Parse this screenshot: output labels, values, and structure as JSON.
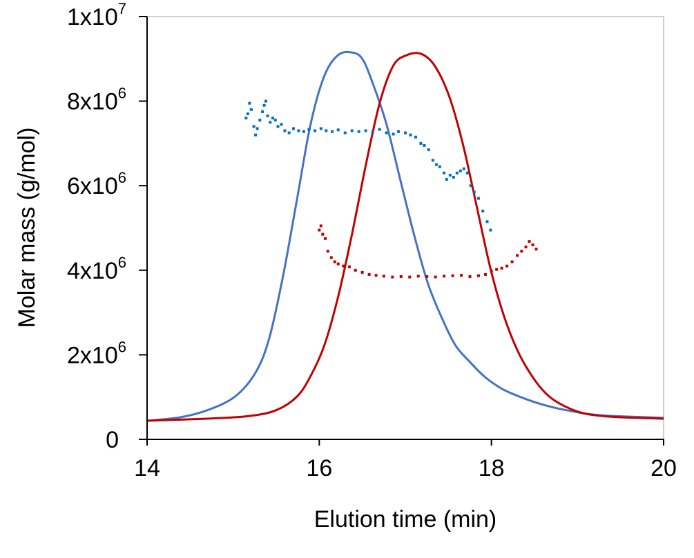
{
  "chart_data": {
    "type": "line",
    "title": "",
    "xlabel": "Elution time (min)",
    "ylabel": "Molar mass (g/mol)",
    "xlim": [
      14,
      20
    ],
    "ylim": [
      0,
      10000000
    ],
    "x_ticks": [
      {
        "value": 14,
        "label": "14"
      },
      {
        "value": 16,
        "label": "16"
      },
      {
        "value": 18,
        "label": "18"
      },
      {
        "value": 20,
        "label": "20"
      }
    ],
    "y_ticks": [
      {
        "value": 0,
        "mant": "0",
        "exp": ""
      },
      {
        "value": 2000000,
        "mant": "2x10",
        "exp": "6"
      },
      {
        "value": 4000000,
        "mant": "4x10",
        "exp": "6"
      },
      {
        "value": 6000000,
        "mant": "6x10",
        "exp": "6"
      },
      {
        "value": 8000000,
        "mant": "8x10",
        "exp": "6"
      },
      {
        "value": 10000000,
        "mant": "1x10",
        "exp": "7"
      }
    ],
    "grid": false,
    "legend": "none",
    "series": [
      {
        "kind": "line",
        "color": "#4472C4",
        "points": [
          [
            14,
            0.44
          ],
          [
            14.38,
            0.52
          ],
          [
            14.7,
            0.69
          ],
          [
            15.02,
            1.01
          ],
          [
            15.26,
            1.58
          ],
          [
            15.42,
            2.4
          ],
          [
            15.58,
            3.87
          ],
          [
            15.74,
            5.66
          ],
          [
            15.9,
            7.46
          ],
          [
            16.06,
            8.6
          ],
          [
            16.22,
            9.09
          ],
          [
            16.38,
            9.15
          ],
          [
            16.5,
            9.0
          ],
          [
            16.62,
            8.43
          ],
          [
            16.78,
            7.46
          ],
          [
            16.94,
            6.15
          ],
          [
            17.1,
            4.85
          ],
          [
            17.26,
            3.7
          ],
          [
            17.42,
            2.89
          ],
          [
            17.58,
            2.23
          ],
          [
            17.75,
            1.83
          ],
          [
            17.91,
            1.5
          ],
          [
            18.07,
            1.26
          ],
          [
            18.23,
            1.09
          ],
          [
            18.55,
            0.85
          ],
          [
            18.87,
            0.69
          ],
          [
            19.27,
            0.57
          ],
          [
            20,
            0.51
          ]
        ]
      },
      {
        "kind": "line",
        "color": "#C00000",
        "points": [
          [
            14,
            0.44
          ],
          [
            14.7,
            0.49
          ],
          [
            15.18,
            0.55
          ],
          [
            15.5,
            0.69
          ],
          [
            15.74,
            1.01
          ],
          [
            15.9,
            1.5
          ],
          [
            16.06,
            2.23
          ],
          [
            16.22,
            3.38
          ],
          [
            16.38,
            4.85
          ],
          [
            16.54,
            6.48
          ],
          [
            16.7,
            7.94
          ],
          [
            16.86,
            8.84
          ],
          [
            17.02,
            9.09
          ],
          [
            17.18,
            9.12
          ],
          [
            17.34,
            8.84
          ],
          [
            17.51,
            8.11
          ],
          [
            17.67,
            6.97
          ],
          [
            17.83,
            5.5
          ],
          [
            17.99,
            4.03
          ],
          [
            18.15,
            2.89
          ],
          [
            18.31,
            2.07
          ],
          [
            18.47,
            1.5
          ],
          [
            18.63,
            1.09
          ],
          [
            18.79,
            0.85
          ],
          [
            19.03,
            0.64
          ],
          [
            19.35,
            0.54
          ],
          [
            20,
            0.49
          ]
        ]
      },
      {
        "kind": "scatter",
        "color": "#0070C0",
        "points": [
          [
            15.15,
            7.6
          ],
          [
            15.17,
            7.7
          ],
          [
            15.19,
            7.95
          ],
          [
            15.21,
            7.8
          ],
          [
            15.24,
            7.4
          ],
          [
            15.26,
            7.2
          ],
          [
            15.28,
            7.35
          ],
          [
            15.31,
            7.55
          ],
          [
            15.34,
            7.75
          ],
          [
            15.36,
            7.9
          ],
          [
            15.38,
            8.0
          ],
          [
            15.4,
            7.65
          ],
          [
            15.43,
            7.5
          ],
          [
            15.46,
            7.6
          ],
          [
            15.49,
            7.55
          ],
          [
            15.52,
            7.4
          ],
          [
            15.56,
            7.45
          ],
          [
            15.6,
            7.3
          ],
          [
            15.65,
            7.25
          ],
          [
            15.7,
            7.35
          ],
          [
            15.76,
            7.3
          ],
          [
            15.82,
            7.28
          ],
          [
            15.88,
            7.33
          ],
          [
            15.95,
            7.3
          ],
          [
            16.02,
            7.35
          ],
          [
            16.08,
            7.3
          ],
          [
            16.15,
            7.28
          ],
          [
            16.22,
            7.32
          ],
          [
            16.3,
            7.25
          ],
          [
            16.38,
            7.3
          ],
          [
            16.46,
            7.28
          ],
          [
            16.54,
            7.3
          ],
          [
            16.62,
            7.25
          ],
          [
            16.7,
            7.33
          ],
          [
            16.78,
            7.25
          ],
          [
            16.86,
            7.22
          ],
          [
            16.92,
            7.28
          ],
          [
            17.0,
            7.25
          ],
          [
            17.06,
            7.2
          ],
          [
            17.12,
            7.15
          ],
          [
            17.18,
            7.0
          ],
          [
            17.22,
            6.95
          ],
          [
            17.27,
            6.85
          ],
          [
            17.32,
            6.6
          ],
          [
            17.36,
            6.5
          ],
          [
            17.4,
            6.45
          ],
          [
            17.45,
            6.3
          ],
          [
            17.48,
            6.15
          ],
          [
            17.52,
            6.25
          ],
          [
            17.56,
            6.2
          ],
          [
            17.6,
            6.3
          ],
          [
            17.64,
            6.35
          ],
          [
            17.68,
            6.4
          ],
          [
            17.72,
            6.3
          ],
          [
            17.76,
            6.0
          ],
          [
            17.8,
            5.85
          ],
          [
            17.85,
            5.7
          ],
          [
            17.9,
            5.4
          ],
          [
            17.95,
            5.15
          ],
          [
            17.99,
            4.95
          ]
        ]
      },
      {
        "kind": "scatter",
        "color": "#C00000",
        "points": [
          [
            16.0,
            4.95
          ],
          [
            16.02,
            5.05
          ],
          [
            16.04,
            4.85
          ],
          [
            16.07,
            4.75
          ],
          [
            16.1,
            4.45
          ],
          [
            16.14,
            4.3
          ],
          [
            16.18,
            4.2
          ],
          [
            16.22,
            4.15
          ],
          [
            16.28,
            4.1
          ],
          [
            16.35,
            4.08
          ],
          [
            16.42,
            4.0
          ],
          [
            16.5,
            3.95
          ],
          [
            16.58,
            3.9
          ],
          [
            16.66,
            3.88
          ],
          [
            16.75,
            3.86
          ],
          [
            16.85,
            3.84
          ],
          [
            16.95,
            3.85
          ],
          [
            17.05,
            3.84
          ],
          [
            17.15,
            3.86
          ],
          [
            17.25,
            3.85
          ],
          [
            17.35,
            3.84
          ],
          [
            17.45,
            3.86
          ],
          [
            17.55,
            3.87
          ],
          [
            17.65,
            3.88
          ],
          [
            17.75,
            3.85
          ],
          [
            17.85,
            3.87
          ],
          [
            17.93,
            3.9
          ],
          [
            18.0,
            3.98
          ],
          [
            18.06,
            4.02
          ],
          [
            18.12,
            4.05
          ],
          [
            18.18,
            4.1
          ],
          [
            18.24,
            4.2
          ],
          [
            18.3,
            4.35
          ],
          [
            18.35,
            4.45
          ],
          [
            18.4,
            4.55
          ],
          [
            18.44,
            4.68
          ],
          [
            18.48,
            4.6
          ],
          [
            18.52,
            4.5
          ]
        ]
      }
    ]
  }
}
